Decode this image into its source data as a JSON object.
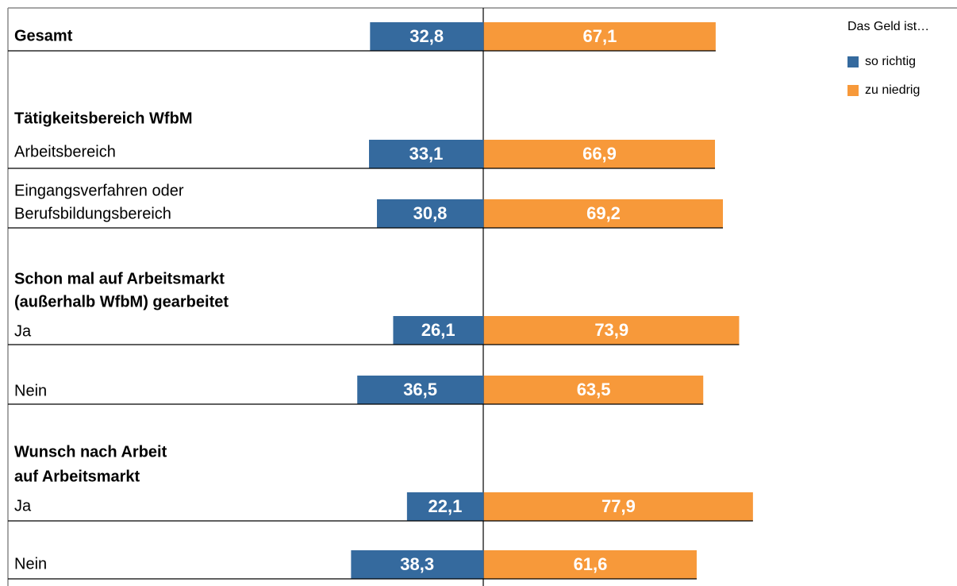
{
  "chart_data": {
    "type": "diverging-bar",
    "legend_title": "Das Geld ist…",
    "categories": [
      "Gesamt",
      "Tätigkeitsbereich WfbM",
      "Arbeitsbereich",
      [
        "Eingangsverfahren oder",
        "Berufsbildungsbereich"
      ],
      [
        "Schon mal auf Arbeitsmarkt",
        "(außerhalb WfbM) gearbeitet"
      ],
      "Ja",
      "Nein",
      [
        "Wunsch nach Arbeit",
        "auf Arbeitsmarkt"
      ],
      "Ja",
      "Nein"
    ],
    "category_bold": [
      true,
      true,
      false,
      false,
      true,
      false,
      false,
      true,
      false,
      false
    ],
    "series": [
      {
        "name": "so richtig",
        "color": "#356a9e",
        "direction": "left",
        "values": [
          32.8,
          null,
          33.1,
          30.8,
          null,
          26.1,
          36.5,
          null,
          22.1,
          38.3
        ],
        "value_labels": [
          "32,8",
          null,
          "33,1",
          "30,8",
          null,
          "26,1",
          "36,5",
          null,
          "22,1",
          "38,3"
        ]
      },
      {
        "name": "zu niedrig",
        "color": "#f7993a",
        "direction": "right",
        "values": [
          67.1,
          null,
          66.9,
          69.2,
          null,
          73.9,
          63.5,
          null,
          77.9,
          61.6
        ],
        "value_labels": [
          "67,1",
          null,
          "66,9",
          "69,2",
          null,
          "73,9",
          "63,5",
          null,
          "77,9",
          "61,6"
        ]
      }
    ]
  }
}
